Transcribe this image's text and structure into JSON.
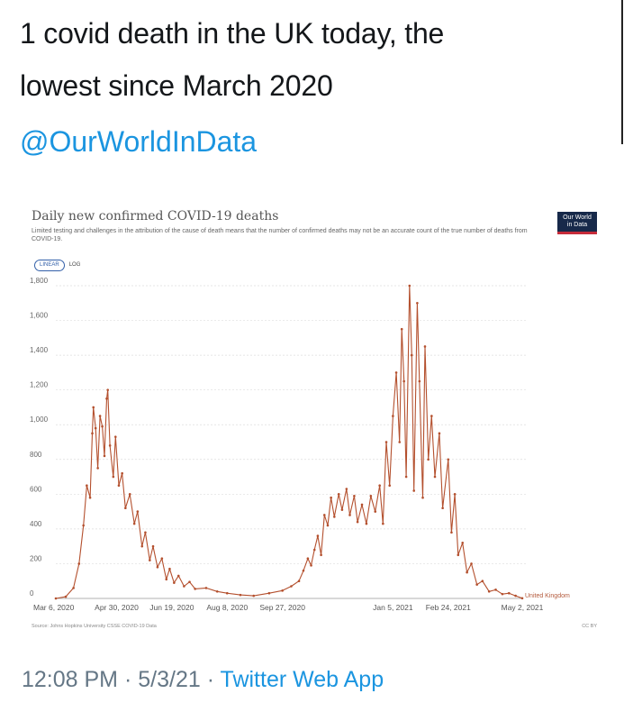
{
  "tweet": {
    "text_line1": "1 covid death in the UK today, the",
    "text_line2": "lowest since March 2020",
    "mention": "@OurWorldInData",
    "time": "12:08 PM",
    "separator": "·",
    "date": "5/3/21",
    "client": "Twitter Web App"
  },
  "colors": {
    "series": "#b4502e",
    "link": "#1b95e0",
    "logo_bg": "#17294a",
    "logo_accent": "#c62b3a"
  },
  "chart_data": {
    "type": "line",
    "title": "Daily new confirmed COVID-19 deaths",
    "subtitle": "Limited testing and challenges in the attribution of the cause of death means that the number of confirmed deaths may not be an accurate count of the true number of deaths from COVID-19.",
    "logo_text": [
      "Our World",
      "in Data"
    ],
    "scale_options": [
      "LINEAR",
      "LOG"
    ],
    "selected_scale": "LINEAR",
    "source": "Source: Johns Hopkins University CSSE COVID-19 Data",
    "license": "CC BY",
    "ylim": [
      0,
      1800
    ],
    "y_ticks": [
      0,
      200,
      400,
      600,
      800,
      1000,
      1200,
      1400,
      1600,
      1800
    ],
    "y_tick_labels": [
      "0",
      "200",
      "400",
      "600",
      "800",
      "1,000",
      "1,200",
      "1,400",
      "1,600",
      "1,800"
    ],
    "x_range": [
      "2020-03-06",
      "2021-05-02"
    ],
    "x_ticks": [
      "2020-03-06",
      "2020-04-30",
      "2020-06-19",
      "2020-08-08",
      "2020-09-27",
      "2021-01-05",
      "2021-02-24",
      "2021-05-02"
    ],
    "x_tick_labels": [
      "Mar 6, 2020",
      "Apr 30, 2020",
      "Jun 19, 2020",
      "Aug 8, 2020",
      "Sep 27, 2020",
      "Jan 5, 2021",
      "Feb 24, 2021",
      "May 2, 2021"
    ],
    "grid": true,
    "series": [
      {
        "name": "United Kingdom",
        "points": [
          [
            "2020-03-06",
            0
          ],
          [
            "2020-03-15",
            10
          ],
          [
            "2020-03-22",
            60
          ],
          [
            "2020-03-27",
            200
          ],
          [
            "2020-03-31",
            420
          ],
          [
            "2020-04-03",
            650
          ],
          [
            "2020-04-06",
            580
          ],
          [
            "2020-04-08",
            950
          ],
          [
            "2020-04-09",
            1100
          ],
          [
            "2020-04-11",
            980
          ],
          [
            "2020-04-13",
            750
          ],
          [
            "2020-04-15",
            1050
          ],
          [
            "2020-04-17",
            990
          ],
          [
            "2020-04-19",
            820
          ],
          [
            "2020-04-21",
            1150
          ],
          [
            "2020-04-22",
            1200
          ],
          [
            "2020-04-24",
            880
          ],
          [
            "2020-04-27",
            700
          ],
          [
            "2020-04-29",
            930
          ],
          [
            "2020-05-02",
            650
          ],
          [
            "2020-05-05",
            720
          ],
          [
            "2020-05-08",
            520
          ],
          [
            "2020-05-12",
            600
          ],
          [
            "2020-05-16",
            430
          ],
          [
            "2020-05-19",
            500
          ],
          [
            "2020-05-23",
            300
          ],
          [
            "2020-05-26",
            380
          ],
          [
            "2020-05-30",
            220
          ],
          [
            "2020-06-02",
            300
          ],
          [
            "2020-06-06",
            180
          ],
          [
            "2020-06-10",
            230
          ],
          [
            "2020-06-14",
            110
          ],
          [
            "2020-06-17",
            170
          ],
          [
            "2020-06-21",
            90
          ],
          [
            "2020-06-25",
            130
          ],
          [
            "2020-06-30",
            70
          ],
          [
            "2020-07-05",
            95
          ],
          [
            "2020-07-10",
            55
          ],
          [
            "2020-07-20",
            60
          ],
          [
            "2020-07-30",
            40
          ],
          [
            "2020-08-08",
            30
          ],
          [
            "2020-08-20",
            20
          ],
          [
            "2020-09-01",
            15
          ],
          [
            "2020-09-15",
            30
          ],
          [
            "2020-09-27",
            45
          ],
          [
            "2020-10-05",
            70
          ],
          [
            "2020-10-12",
            100
          ],
          [
            "2020-10-16",
            160
          ],
          [
            "2020-10-20",
            230
          ],
          [
            "2020-10-23",
            190
          ],
          [
            "2020-10-26",
            280
          ],
          [
            "2020-10-29",
            360
          ],
          [
            "2020-11-01",
            250
          ],
          [
            "2020-11-04",
            480
          ],
          [
            "2020-11-07",
            420
          ],
          [
            "2020-11-10",
            580
          ],
          [
            "2020-11-13",
            470
          ],
          [
            "2020-11-17",
            600
          ],
          [
            "2020-11-20",
            510
          ],
          [
            "2020-11-24",
            630
          ],
          [
            "2020-11-27",
            480
          ],
          [
            "2020-12-01",
            590
          ],
          [
            "2020-12-04",
            440
          ],
          [
            "2020-12-08",
            540
          ],
          [
            "2020-12-12",
            430
          ],
          [
            "2020-12-16",
            590
          ],
          [
            "2020-12-20",
            500
          ],
          [
            "2020-12-24",
            650
          ],
          [
            "2020-12-27",
            430
          ],
          [
            "2020-12-30",
            900
          ],
          [
            "2021-01-02",
            650
          ],
          [
            "2021-01-05",
            1050
          ],
          [
            "2021-01-08",
            1300
          ],
          [
            "2021-01-11",
            900
          ],
          [
            "2021-01-13",
            1550
          ],
          [
            "2021-01-15",
            1250
          ],
          [
            "2021-01-17",
            700
          ],
          [
            "2021-01-20",
            1800
          ],
          [
            "2021-01-22",
            1400
          ],
          [
            "2021-01-24",
            620
          ],
          [
            "2021-01-27",
            1700
          ],
          [
            "2021-01-29",
            1250
          ],
          [
            "2021-02-01",
            580
          ],
          [
            "2021-02-03",
            1450
          ],
          [
            "2021-02-06",
            800
          ],
          [
            "2021-02-09",
            1050
          ],
          [
            "2021-02-12",
            700
          ],
          [
            "2021-02-16",
            950
          ],
          [
            "2021-02-19",
            520
          ],
          [
            "2021-02-24",
            800
          ],
          [
            "2021-02-27",
            380
          ],
          [
            "2021-03-02",
            600
          ],
          [
            "2021-03-05",
            250
          ],
          [
            "2021-03-09",
            320
          ],
          [
            "2021-03-13",
            150
          ],
          [
            "2021-03-17",
            200
          ],
          [
            "2021-03-22",
            80
          ],
          [
            "2021-03-27",
            100
          ],
          [
            "2021-04-02",
            40
          ],
          [
            "2021-04-08",
            50
          ],
          [
            "2021-04-14",
            25
          ],
          [
            "2021-04-20",
            30
          ],
          [
            "2021-04-26",
            15
          ],
          [
            "2021-05-02",
            1
          ]
        ]
      }
    ]
  }
}
